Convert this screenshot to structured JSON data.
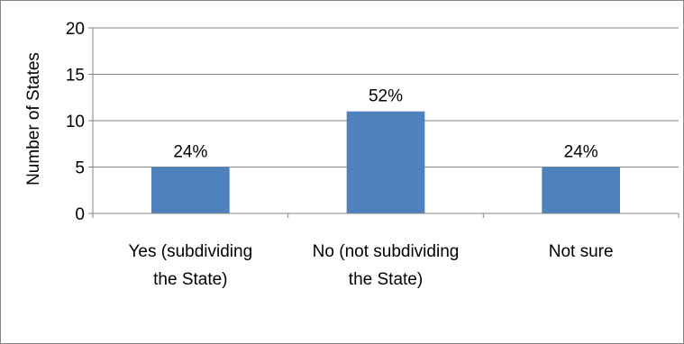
{
  "chart_data": {
    "type": "bar",
    "title": "",
    "xlabel": "",
    "ylabel": "Number of States",
    "ylim": [
      0,
      20
    ],
    "yticks": [
      0,
      5,
      10,
      15,
      20
    ],
    "grid": true,
    "legend": "none",
    "categories": [
      [
        "Yes (subdividing",
        "the State)"
      ],
      [
        "No (not subdividing",
        "the State)"
      ],
      [
        "Not sure"
      ]
    ],
    "values": [
      5,
      11,
      5
    ],
    "data_labels": [
      "24%",
      "52%",
      "24%"
    ],
    "bar_color": "#4F81BD",
    "grid_color": "#868686",
    "axis_color": "#868686"
  }
}
